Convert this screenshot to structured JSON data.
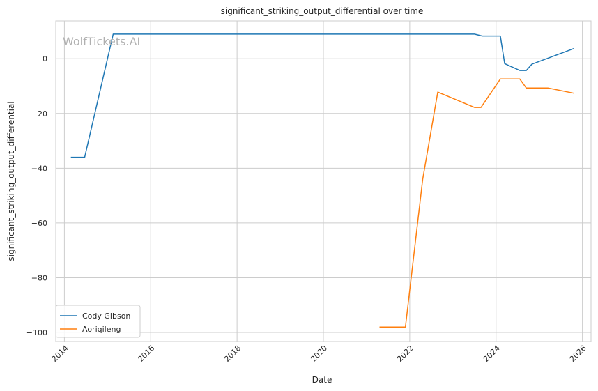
{
  "chart_data": {
    "type": "line",
    "title": "significant_striking_output_differential over time",
    "xlabel": "Date",
    "ylabel": "significant_striking_output_differential",
    "watermark": "WolfTickets.AI",
    "xlim": [
      2013.8,
      2026.2
    ],
    "ylim": [
      -103.3,
      13.8
    ],
    "x_ticks": [
      2014,
      2016,
      2018,
      2020,
      2022,
      2024,
      2026
    ],
    "x_tick_labels": [
      "2014",
      "2016",
      "2018",
      "2020",
      "2022",
      "2024",
      "2026"
    ],
    "y_ticks": [
      -100,
      -80,
      -60,
      -40,
      -20,
      0
    ],
    "y_tick_labels": [
      "−100",
      "−80",
      "−60",
      "−40",
      "−20",
      "0"
    ],
    "grid": true,
    "legend_position": "lower-left",
    "series": [
      {
        "name": "Cody Gibson",
        "color": "#1f77b4",
        "points": [
          [
            2014.15,
            -36
          ],
          [
            2014.47,
            -36
          ],
          [
            2015.13,
            9
          ],
          [
            2023.5,
            9
          ],
          [
            2023.68,
            8.3
          ],
          [
            2024.1,
            8.3
          ],
          [
            2024.2,
            -1.8
          ],
          [
            2024.55,
            -4.3
          ],
          [
            2024.7,
            -4.3
          ],
          [
            2024.83,
            -2
          ],
          [
            2025.8,
            3.7
          ]
        ]
      },
      {
        "name": "Aoriqileng",
        "color": "#ff7f0e",
        "points": [
          [
            2021.3,
            -98
          ],
          [
            2021.9,
            -98
          ],
          [
            2022.3,
            -44
          ],
          [
            2022.65,
            -12.2
          ],
          [
            2023.5,
            -17.8
          ],
          [
            2023.65,
            -17.8
          ],
          [
            2024.1,
            -7.4
          ],
          [
            2024.55,
            -7.4
          ],
          [
            2024.7,
            -10.7
          ],
          [
            2025.2,
            -10.7
          ],
          [
            2025.8,
            -12.6
          ]
        ]
      }
    ]
  }
}
